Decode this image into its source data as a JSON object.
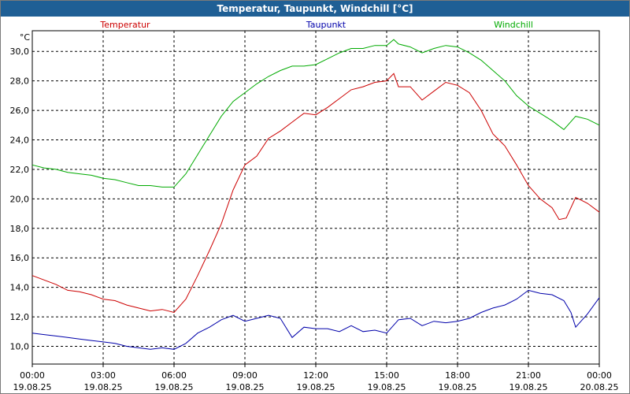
{
  "window_title": "Temperatur, Taupunkt, Windchill [°C]",
  "chart_data": {
    "type": "line",
    "unit_label": "°C",
    "ylim": [
      8.8,
      31.4
    ],
    "y_ticks": [
      "10,0",
      "12,0",
      "14,0",
      "16,0",
      "18,0",
      "20,0",
      "22,0",
      "24,0",
      "26,0",
      "28,0",
      "30,0"
    ],
    "y_tick_values": [
      10,
      12,
      14,
      16,
      18,
      20,
      22,
      24,
      26,
      28,
      30
    ],
    "x_hours": [
      0,
      3,
      6,
      9,
      12,
      15,
      18,
      21,
      24
    ],
    "x_tick_times": [
      "00:00",
      "03:00",
      "06:00",
      "09:00",
      "12:00",
      "15:00",
      "18:00",
      "21:00",
      "00:00"
    ],
    "x_tick_dates": [
      "19.08.25",
      "19.08.25",
      "19.08.25",
      "19.08.25",
      "19.08.25",
      "19.08.25",
      "19.08.25",
      "19.08.25",
      "20.08.25"
    ],
    "grid": true,
    "legend_position": "top",
    "series": [
      {
        "name": "Temperatur",
        "color": "#cc0000",
        "x": [
          0,
          0.5,
          1,
          1.5,
          2,
          2.5,
          3,
          3.5,
          4,
          4.5,
          5,
          5.5,
          6,
          6.5,
          7,
          7.5,
          8,
          8.5,
          9,
          9.5,
          10,
          10.5,
          11,
          11.5,
          12,
          12.5,
          13,
          13.5,
          14,
          14.5,
          15,
          15.3,
          15.5,
          16,
          16.5,
          17,
          17.5,
          18,
          18.5,
          19,
          19.5,
          20,
          20.5,
          21,
          21.5,
          22,
          22.3,
          22.6,
          23,
          23.5,
          24
        ],
        "y": [
          14.8,
          14.5,
          14.2,
          13.8,
          13.7,
          13.5,
          13.2,
          13.1,
          12.8,
          12.6,
          12.4,
          12.5,
          12.3,
          13.2,
          14.8,
          16.5,
          18.3,
          20.6,
          22.3,
          22.9,
          24.1,
          24.6,
          25.2,
          25.8,
          25.7,
          26.2,
          26.8,
          27.4,
          27.6,
          27.9,
          28.0,
          28.5,
          27.6,
          27.6,
          26.7,
          27.3,
          27.9,
          27.7,
          27.2,
          26.0,
          24.4,
          23.6,
          22.3,
          20.9,
          20.0,
          19.4,
          18.6,
          18.7,
          20.1,
          19.7,
          19.1
        ]
      },
      {
        "name": "Taupunkt",
        "color": "#0000aa",
        "x": [
          0,
          0.5,
          1,
          1.5,
          2,
          2.5,
          3,
          3.5,
          4,
          4.5,
          5,
          5.5,
          6,
          6.5,
          7,
          7.5,
          8,
          8.5,
          9,
          9.5,
          10,
          10.5,
          11,
          11.5,
          12,
          12.5,
          13,
          13.5,
          14,
          14.5,
          15,
          15.5,
          16,
          16.5,
          17,
          17.5,
          18,
          18.5,
          19,
          19.5,
          20,
          20.5,
          21,
          21.5,
          22,
          22.5,
          22.8,
          23,
          23.5,
          24
        ],
        "y": [
          10.9,
          10.8,
          10.7,
          10.6,
          10.5,
          10.4,
          10.3,
          10.2,
          10.0,
          9.9,
          9.8,
          9.9,
          9.8,
          10.2,
          10.9,
          11.3,
          11.8,
          12.1,
          11.7,
          11.9,
          12.1,
          11.9,
          10.6,
          11.3,
          11.2,
          11.2,
          11.0,
          11.4,
          11.0,
          11.1,
          10.9,
          11.8,
          11.9,
          11.4,
          11.7,
          11.6,
          11.7,
          11.9,
          12.3,
          12.6,
          12.8,
          13.2,
          13.8,
          13.6,
          13.5,
          13.1,
          12.3,
          11.3,
          12.2,
          13.3
        ]
      },
      {
        "name": "Windchill",
        "color": "#00aa00",
        "x": [
          0,
          0.5,
          1,
          1.5,
          2,
          2.5,
          3,
          3.5,
          4,
          4.5,
          5,
          5.5,
          6,
          6.5,
          7,
          7.5,
          8,
          8.5,
          9,
          9.5,
          10,
          10.5,
          11,
          11.5,
          12,
          12.5,
          13,
          13.5,
          14,
          14.5,
          15,
          15.3,
          15.5,
          16,
          16.5,
          17,
          17.5,
          18,
          18.5,
          19,
          19.5,
          20,
          20.5,
          21,
          21.5,
          22,
          22.5,
          23,
          23.5,
          24
        ],
        "y": [
          22.3,
          22.1,
          22.0,
          21.8,
          21.7,
          21.6,
          21.4,
          21.3,
          21.1,
          20.9,
          20.9,
          20.8,
          20.8,
          21.7,
          23.0,
          24.3,
          25.6,
          26.6,
          27.2,
          27.8,
          28.3,
          28.7,
          29.0,
          29.0,
          29.1,
          29.5,
          29.9,
          30.2,
          30.2,
          30.4,
          30.4,
          30.8,
          30.5,
          30.3,
          29.9,
          30.2,
          30.4,
          30.3,
          29.9,
          29.4,
          28.7,
          28.0,
          27.0,
          26.3,
          25.8,
          25.3,
          24.7,
          25.6,
          25.4,
          25.0
        ]
      }
    ]
  }
}
